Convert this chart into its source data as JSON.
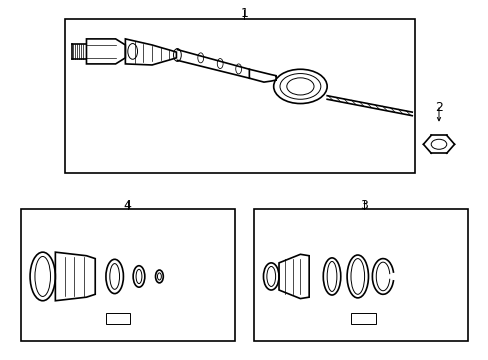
{
  "bg_color": "#ffffff",
  "line_color": "#000000",
  "line_width": 1.2,
  "thin_line": 0.7,
  "fig_width": 4.89,
  "fig_height": 3.6,
  "dpi": 100,
  "label1": "1",
  "label2": "2",
  "label3": "3",
  "label4": "4",
  "font_size": 9
}
